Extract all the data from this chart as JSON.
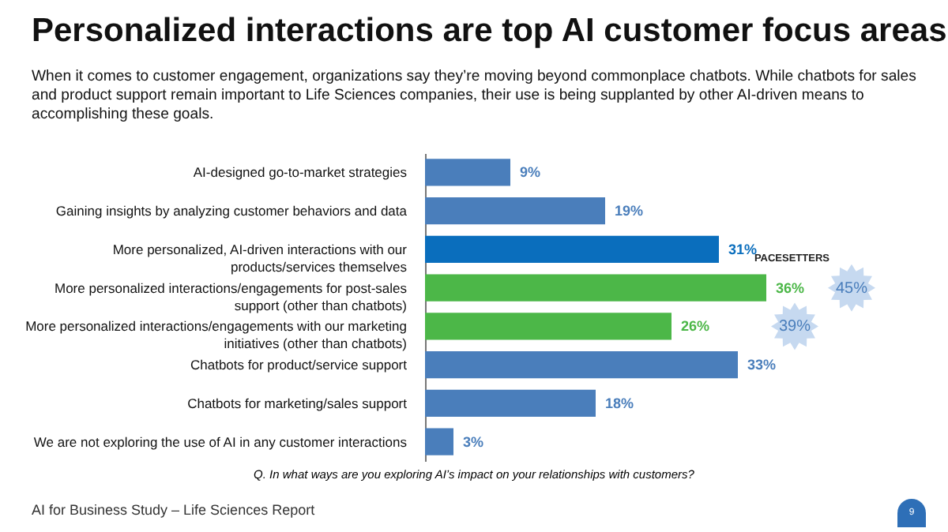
{
  "chart_data": {
    "type": "bar",
    "orientation": "horizontal",
    "title": "Personalized interactions are top AI customer focus areas",
    "subtitle": "When it comes to customer engagement, organizations say they’re moving beyond commonplace chatbots. While chatbots for sales and product support remain important to Life Sciences companies, their use is being supplanted by other AI-driven means to accomplishing these goals.",
    "categories": [
      "AI-designed go-to-market strategies",
      "Gaining insights by analyzing customer behaviors and data",
      "More personalized, AI-driven interactions with our products/services themselves",
      "More personalized interactions/engagements for post-sales support (other than chatbots)",
      "More personalized interactions/engagements with our marketing initiatives (other than chatbots)",
      "Chatbots for product/service support",
      "Chatbots for marketing/sales support",
      "We are not exploring the use of AI in any customer interactions"
    ],
    "series": [
      {
        "colors": [
          "#4a7ebb",
          "#4a7ebb",
          "#0a6ebd",
          "#4cb748",
          "#4cb748",
          "#4a7ebb",
          "#4a7ebb",
          "#4a7ebb"
        ],
        "values": [
          9,
          19,
          31,
          36,
          26,
          33,
          18,
          3
        ],
        "value_labels": [
          "9%",
          "19%",
          "31%",
          "36%",
          "26%",
          "33%",
          "18%",
          "3%"
        ]
      },
      {
        "type": "scatter",
        "name": "PACESETTERS",
        "color": "#c6d9f0",
        "values": [
          null,
          null,
          null,
          45,
          39,
          null,
          null,
          null
        ],
        "value_labels": [
          null,
          null,
          null,
          "45%",
          "39%",
          null,
          null,
          null
        ]
      }
    ],
    "marker": "star",
    "annotations": [
      "Q. In what ways are you exploring AI’s impact on your relationships with customers?",
      "AI for Business Study – Life Sciences Report",
      "9"
    ]
  }
}
